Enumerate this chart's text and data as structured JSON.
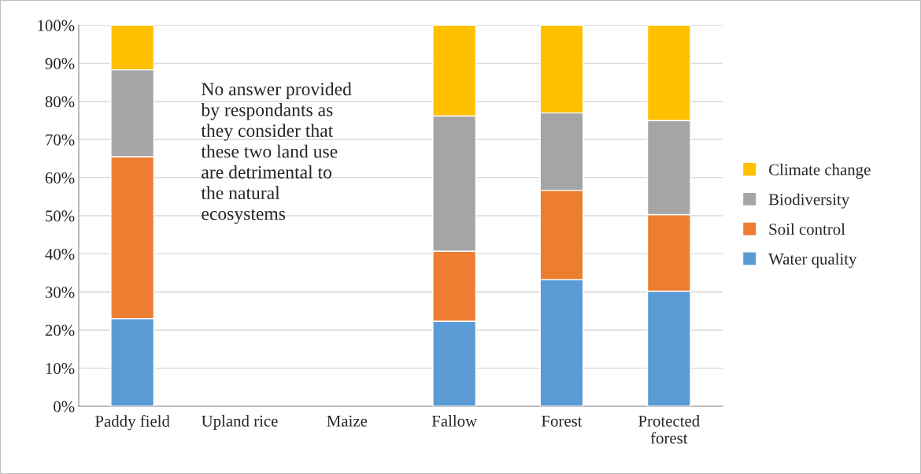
{
  "chart_data": {
    "type": "bar",
    "stacked": true,
    "categories": [
      "Paddy field",
      "Upland rice",
      "Maize",
      "Fallow",
      "Forest",
      "Protected\nforest"
    ],
    "series": [
      {
        "name": "Water quality",
        "color": "#5b9bd5",
        "values": [
          23,
          null,
          null,
          22.3,
          33.2,
          30.2
        ]
      },
      {
        "name": "Soil control",
        "color": "#ed7d31",
        "values": [
          42.5,
          null,
          null,
          18.4,
          23.5,
          20.1
        ]
      },
      {
        "name": "Biodiversity",
        "color": "#a5a5a5",
        "values": [
          22.8,
          null,
          null,
          35.5,
          20.3,
          24.7
        ]
      },
      {
        "name": "Climate change",
        "color": "#ffc000",
        "values": [
          11.7,
          null,
          null,
          23.8,
          23,
          25
        ]
      }
    ],
    "ylim": [
      0,
      100
    ],
    "yticks": [
      {
        "value": 0,
        "label": "0%"
      },
      {
        "value": 10,
        "label": "10%"
      },
      {
        "value": 20,
        "label": "20%"
      },
      {
        "value": 30,
        "label": "30%"
      },
      {
        "value": 40,
        "label": "40%"
      },
      {
        "value": 50,
        "label": "50%"
      },
      {
        "value": 60,
        "label": "60%"
      },
      {
        "value": 70,
        "label": "70%"
      },
      {
        "value": 80,
        "label": "80%"
      },
      {
        "value": 90,
        "label": "90%"
      },
      {
        "value": 100,
        "label": "100%"
      }
    ],
    "grid": "y",
    "legend": "right",
    "annotations": [
      "No answer provided\nby respondants as\nthey consider that\nthese two land use\nare detrimental to\nthe natural\necosystems"
    ]
  }
}
